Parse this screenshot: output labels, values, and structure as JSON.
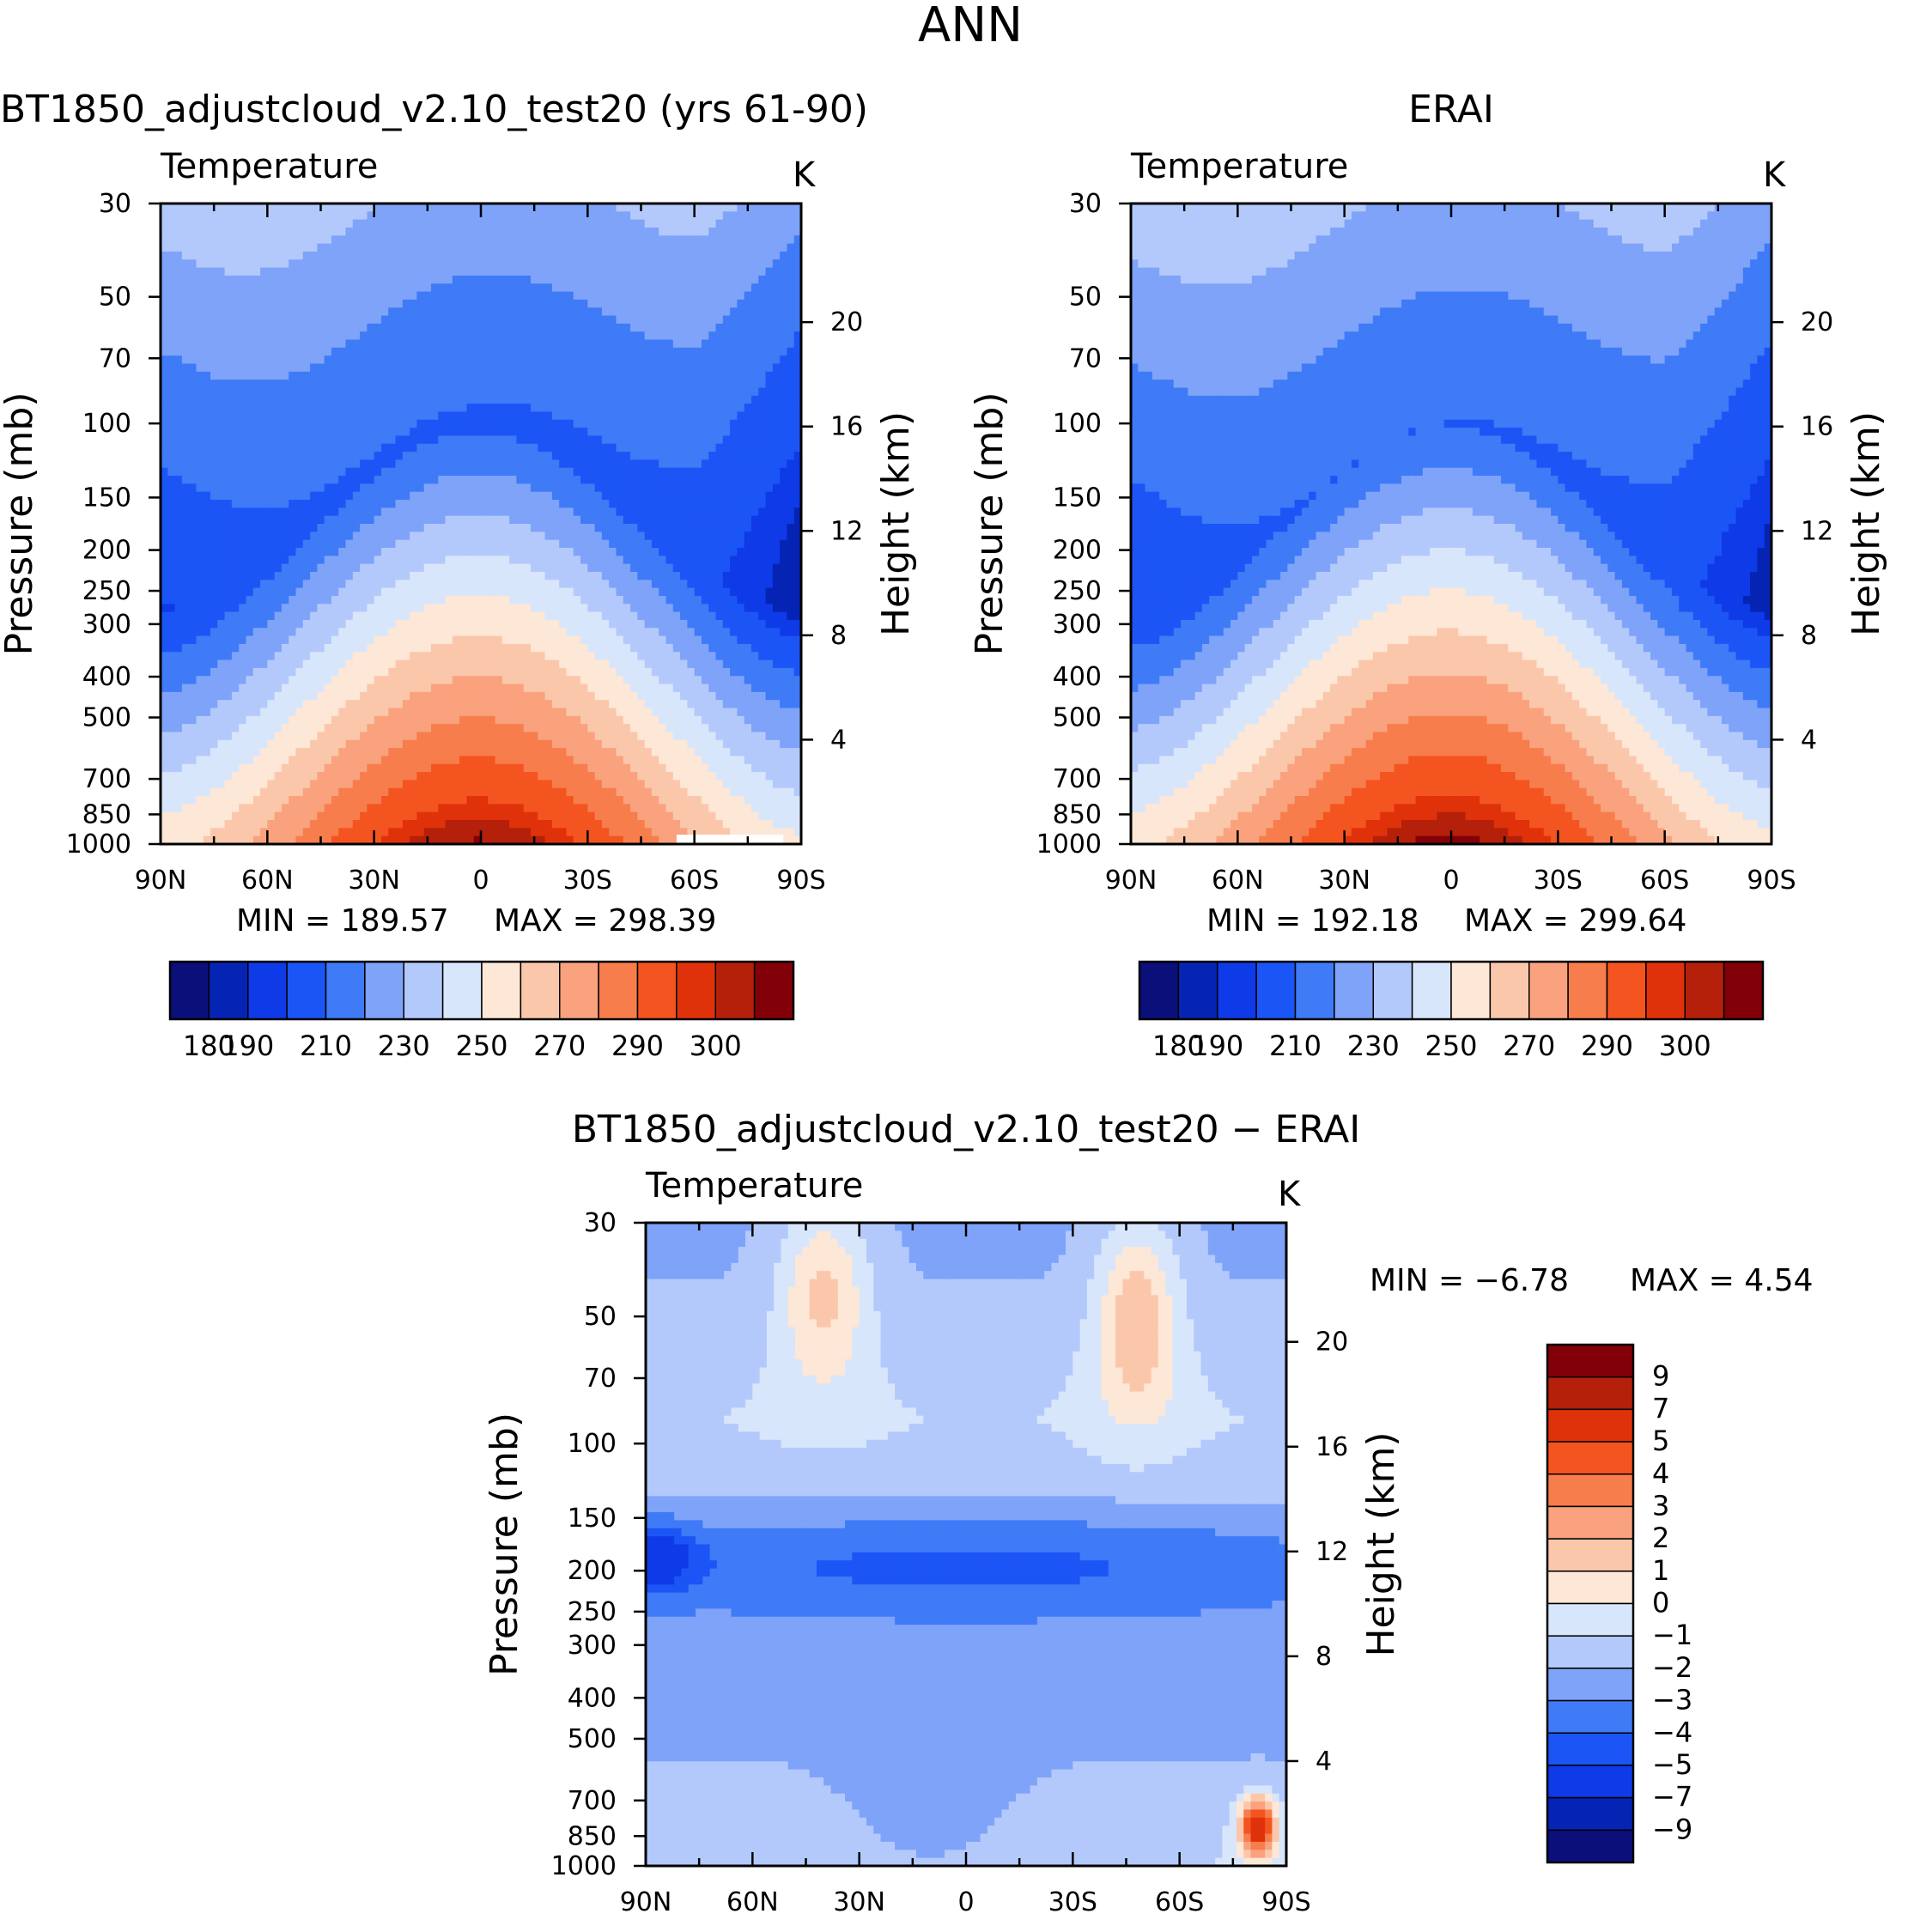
{
  "page_title": "ANN",
  "chart_data": [
    {
      "id": "model",
      "type": "heatmap",
      "title": "BT1850_adjustcloud_v2.10_test20 (yrs 61-90)",
      "variable": "Temperature",
      "units": "K",
      "ylabel": "Pressure (mb)",
      "y2label": "Height (km)",
      "x_ticks": [
        "90N",
        "60N",
        "30N",
        "0",
        "30S",
        "60S",
        "90S"
      ],
      "p_ticks": [
        30,
        50,
        70,
        100,
        150,
        200,
        250,
        300,
        400,
        500,
        700,
        850,
        1000
      ],
      "height_ticks": [
        4,
        8,
        12,
        16,
        20
      ],
      "ylim": [
        1000,
        30
      ],
      "xlim": [
        90,
        -90
      ],
      "min_label": "MIN  =  189.57",
      "max_label": "MAX  =  298.39",
      "min": 189.57,
      "max": 298.39,
      "colorbar_ticks": [
        "180",
        "190",
        "210",
        "230",
        "250",
        "270",
        "290",
        "300"
      ],
      "levels": [
        180,
        185,
        190,
        200,
        210,
        220,
        230,
        240,
        250,
        260,
        270,
        280,
        290,
        295,
        300
      ]
    },
    {
      "id": "obs",
      "type": "heatmap",
      "title": "ERAI",
      "variable": "Temperature",
      "units": "K",
      "ylabel": "Pressure (mb)",
      "y2label": "Height (km)",
      "x_ticks": [
        "90N",
        "60N",
        "30N",
        "0",
        "30S",
        "60S",
        "90S"
      ],
      "p_ticks": [
        30,
        50,
        70,
        100,
        150,
        200,
        250,
        300,
        400,
        500,
        700,
        850,
        1000
      ],
      "height_ticks": [
        4,
        8,
        12,
        16,
        20
      ],
      "ylim": [
        1000,
        30
      ],
      "xlim": [
        90,
        -90
      ],
      "min_label": "MIN  =  192.18",
      "max_label": "MAX  =  299.64",
      "min": 192.18,
      "max": 299.64,
      "colorbar_ticks": [
        "180",
        "190",
        "210",
        "230",
        "250",
        "270",
        "290",
        "300"
      ],
      "levels": [
        180,
        185,
        190,
        200,
        210,
        220,
        230,
        240,
        250,
        260,
        270,
        280,
        290,
        295,
        300
      ]
    },
    {
      "id": "diff",
      "type": "heatmap",
      "title": "BT1850_adjustcloud_v2.10_test20 − ERAI",
      "variable": "Temperature",
      "units": "K",
      "ylabel": "Pressure (mb)",
      "y2label": "Height (km)",
      "x_ticks": [
        "90N",
        "60N",
        "30N",
        "0",
        "30S",
        "60S",
        "90S"
      ],
      "p_ticks": [
        30,
        50,
        70,
        100,
        150,
        200,
        250,
        300,
        400,
        500,
        700,
        850,
        1000
      ],
      "height_ticks": [
        4,
        8,
        12,
        16,
        20
      ],
      "ylim": [
        1000,
        30
      ],
      "xlim": [
        90,
        -90
      ],
      "min_label": "MIN  =    −6.78",
      "max_label": "MAX  =     4.54",
      "min": -6.78,
      "max": 4.54,
      "colorbar_ticks": [
        "9",
        "7",
        "5",
        "4",
        "3",
        "2",
        "1",
        "0",
        "−1",
        "−2",
        "−3",
        "−4",
        "−5",
        "−7",
        "−9"
      ],
      "levels": [
        -9,
        -7,
        -5,
        -4,
        -3,
        -2,
        -1,
        0,
        1,
        2,
        3,
        4,
        5,
        7,
        9
      ]
    }
  ],
  "colors": {
    "palette": [
      "#0a0f7a",
      "#0624b4",
      "#0f3ae8",
      "#1c55f5",
      "#3f7af7",
      "#7ea3f9",
      "#b4c9fb",
      "#d8e6fb",
      "#fde7d6",
      "#fbc7ab",
      "#f9a27d",
      "#f77d4c",
      "#f4541f",
      "#e0320a",
      "#b4200a",
      "#820008"
    ],
    "cmap": [
      "#0a0f7a",
      "#0624b4",
      "#0f3ae8",
      "#1c55f5",
      "#3f7af7",
      "#7ea3f9",
      "#b4c9fb",
      "#d8e6fb",
      "#fde7d6",
      "#fbc7ab",
      "#f9a27d",
      "#f77d4c",
      "#f4541f",
      "#e0320a",
      "#b4200a",
      "#820008"
    ]
  }
}
